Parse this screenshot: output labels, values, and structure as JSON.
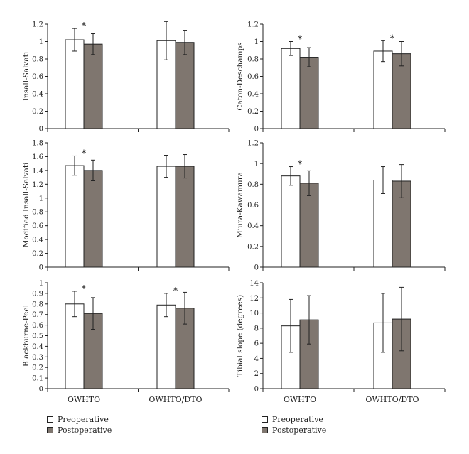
{
  "categories": [
    "OWHTO",
    "OWHTO/DTO"
  ],
  "legend": [
    {
      "label": "Preoperative",
      "color": "#ffffff"
    },
    {
      "label": "Postoperative",
      "color": "#7f766f"
    }
  ],
  "colors": {
    "pre": "#ffffff",
    "post": "#7f766f",
    "axis": "#222222"
  },
  "chart_data": [
    {
      "id": "insall",
      "type": "bar",
      "ylabel": "Insall-Salvati",
      "ylim": [
        0,
        1.2
      ],
      "yticks": [
        "0",
        "0.2",
        "0.4",
        "0.6",
        "0.8",
        "1",
        "1.2"
      ],
      "ytick_values": [
        0,
        0.2,
        0.4,
        0.6,
        0.8,
        1,
        1.2
      ],
      "categories": [
        "OWHTO",
        "OWHTO/DTO"
      ],
      "series": [
        {
          "name": "Preoperative",
          "values": [
            1.02,
            1.01
          ],
          "errors": [
            0.13,
            0.22
          ]
        },
        {
          "name": "Postoperative",
          "values": [
            0.97,
            0.99
          ],
          "errors": [
            0.12,
            0.14
          ]
        }
      ],
      "significant": [
        true,
        false
      ],
      "marker": "*"
    },
    {
      "id": "caton",
      "type": "bar",
      "ylabel": "Caton-Deschamps",
      "ylim": [
        0,
        1.2
      ],
      "yticks": [
        "0",
        "0.2",
        "0.4",
        "0.6",
        "0.8",
        "1",
        "1.2"
      ],
      "ytick_values": [
        0,
        0.2,
        0.4,
        0.6,
        0.8,
        1,
        1.2
      ],
      "categories": [
        "OWHTO",
        "OWHTO/DTO"
      ],
      "series": [
        {
          "name": "Preoperative",
          "values": [
            0.92,
            0.89
          ],
          "errors": [
            0.08,
            0.12
          ]
        },
        {
          "name": "Postoperative",
          "values": [
            0.82,
            0.86
          ],
          "errors": [
            0.11,
            0.14
          ]
        }
      ],
      "significant": [
        true,
        true
      ],
      "marker": "*"
    },
    {
      "id": "modified",
      "type": "bar",
      "ylabel": "Modified Insall-Salvati",
      "ylim": [
        0,
        1.8
      ],
      "yticks": [
        "0",
        "0.2",
        "0.4",
        "0.6",
        "0.8",
        "1",
        "1.2",
        "1.4",
        "1.6",
        "1.8"
      ],
      "ytick_values": [
        0,
        0.2,
        0.4,
        0.6,
        0.8,
        1,
        1.2,
        1.4,
        1.6,
        1.8
      ],
      "categories": [
        "OWHTO",
        "OWHTO/DTO"
      ],
      "series": [
        {
          "name": "Preoperative",
          "values": [
            1.47,
            1.46
          ],
          "errors": [
            0.14,
            0.16
          ]
        },
        {
          "name": "Postoperative",
          "values": [
            1.4,
            1.46
          ],
          "errors": [
            0.15,
            0.17
          ]
        }
      ],
      "significant": [
        true,
        false
      ],
      "marker": "*"
    },
    {
      "id": "miura",
      "type": "bar",
      "ylabel": "Miura-Kawamura",
      "ylim": [
        0,
        1.2
      ],
      "yticks": [
        "0",
        "0.2",
        "0.4",
        "0.6",
        "0.8",
        "1",
        "1.2"
      ],
      "ytick_values": [
        0,
        0.2,
        0.4,
        0.6,
        0.8,
        1,
        1.2
      ],
      "categories": [
        "OWHTO",
        "OWHTO/DTO"
      ],
      "series": [
        {
          "name": "Preoperative",
          "values": [
            0.88,
            0.84
          ],
          "errors": [
            0.09,
            0.13
          ]
        },
        {
          "name": "Postoperative",
          "values": [
            0.81,
            0.83
          ],
          "errors": [
            0.12,
            0.16
          ]
        }
      ],
      "significant": [
        true,
        false
      ],
      "marker": "*"
    },
    {
      "id": "blackburne",
      "type": "bar",
      "ylabel": "Blackburne-Peel",
      "ylim": [
        0,
        1
      ],
      "yticks": [
        "0",
        "0.1",
        "0.2",
        "0.3",
        "0.4",
        "0.5",
        "0.6",
        "0.7",
        "0.8",
        "0.9",
        "1"
      ],
      "ytick_values": [
        0,
        0.1,
        0.2,
        0.3,
        0.4,
        0.5,
        0.6,
        0.7,
        0.8,
        0.9,
        1
      ],
      "categories": [
        "OWHTO",
        "OWHTO/DTO"
      ],
      "series": [
        {
          "name": "Preoperative",
          "values": [
            0.8,
            0.79
          ],
          "errors": [
            0.12,
            0.11
          ]
        },
        {
          "name": "Postoperative",
          "values": [
            0.71,
            0.76
          ],
          "errors": [
            0.15,
            0.15
          ]
        }
      ],
      "significant": [
        true,
        true
      ],
      "marker": "*"
    },
    {
      "id": "tibial",
      "type": "bar",
      "ylabel": "Tibial slope (degrees)",
      "ylim": [
        0,
        14
      ],
      "yticks": [
        "0",
        "2",
        "4",
        "6",
        "8",
        "10",
        "12",
        "14"
      ],
      "ytick_values": [
        0,
        2,
        4,
        6,
        8,
        10,
        12,
        14
      ],
      "categories": [
        "OWHTO",
        "OWHTO/DTO"
      ],
      "series": [
        {
          "name": "Preoperative",
          "values": [
            8.3,
            8.7
          ],
          "errors": [
            3.5,
            3.9
          ]
        },
        {
          "name": "Postoperative",
          "values": [
            9.1,
            9.2
          ],
          "errors": [
            3.2,
            4.2
          ]
        }
      ],
      "significant": [
        false,
        false
      ],
      "marker": "*"
    }
  ]
}
